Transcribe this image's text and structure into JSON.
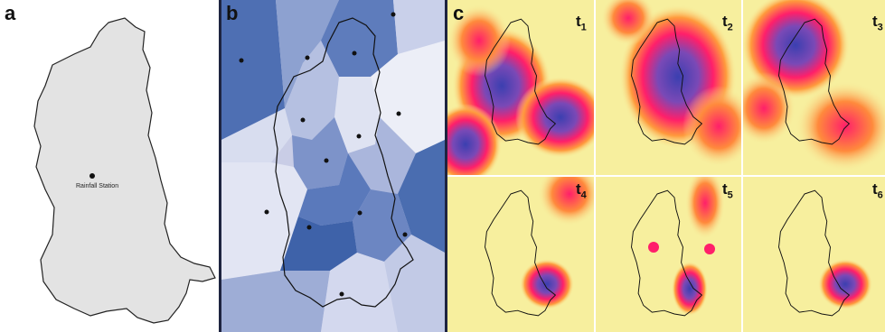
{
  "figure": {
    "panel_a": {
      "label": "a",
      "station_label": "Rainfall Station"
    },
    "panel_b": {
      "label": "b"
    },
    "panel_c": {
      "label": "c",
      "time_steps": [
        {
          "base": "t",
          "sub": "1"
        },
        {
          "base": "t",
          "sub": "2"
        },
        {
          "base": "t",
          "sub": "3"
        },
        {
          "base": "t",
          "sub": "4"
        },
        {
          "base": "t",
          "sub": "5"
        },
        {
          "base": "t",
          "sub": "6"
        }
      ]
    }
  },
  "colors": {
    "catchment_fill": "#e3e3e3",
    "voronoi_dark": "#3a5fa8",
    "voronoi_light": "#e6e8f4",
    "heat_low": "#f7ef9e",
    "heat_mid": "#ff1f6a",
    "heat_high": "#3b3fb0"
  }
}
